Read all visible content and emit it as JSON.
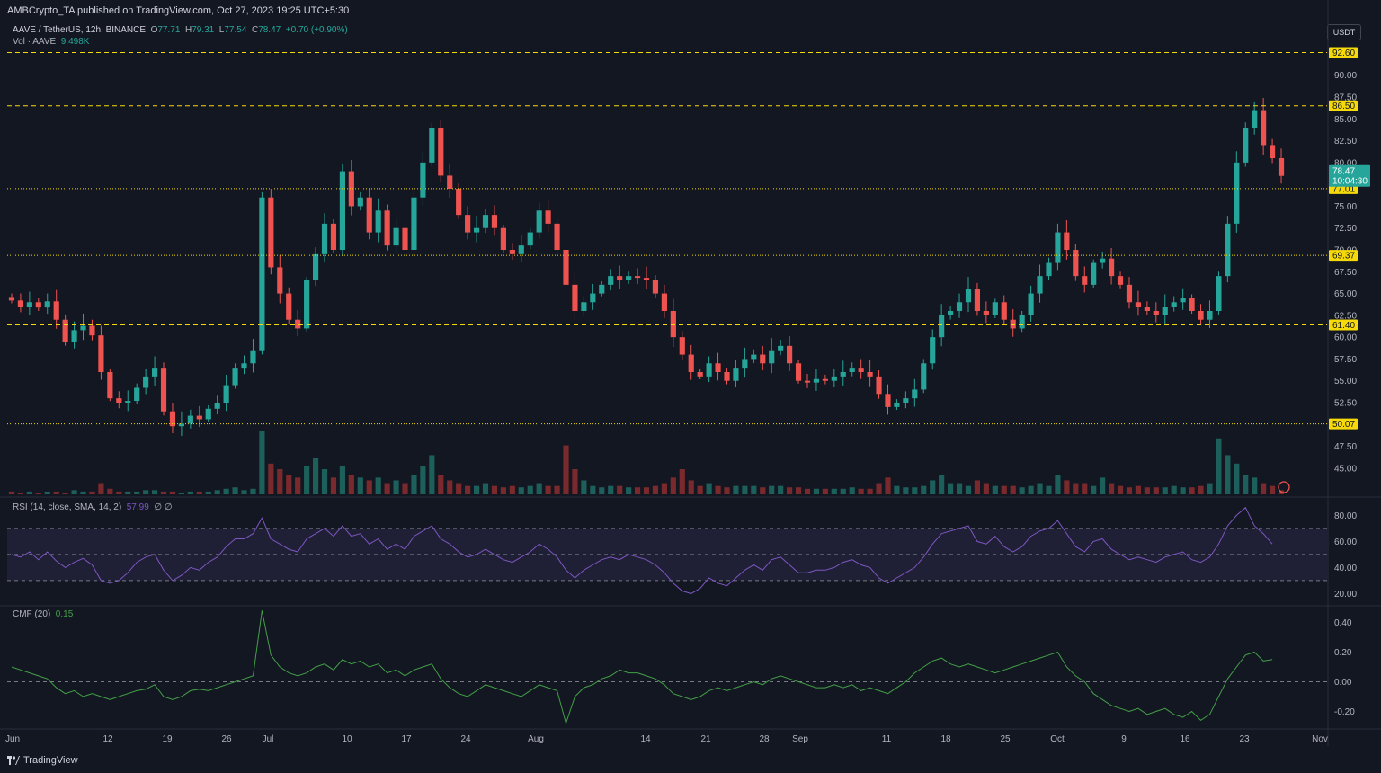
{
  "header": {
    "published_by": "AMBCrypto_TA published on TradingView.com, Oct 27, 2023 19:25 UTC+5:30"
  },
  "legend": {
    "symbol": "AAVE / TetherUS, 12h, BINANCE",
    "o_label": "O",
    "o_value": "77.71",
    "h_label": "H",
    "h_value": "79.31",
    "l_label": "L",
    "l_value": "77.54",
    "c_label": "C",
    "c_value": "78.47",
    "change": "+0.70 (+0.90%)",
    "vol_label": "Vol · AAVE",
    "vol_value": "9.498K"
  },
  "rsi_legend": {
    "label": "RSI (14, close, SMA, 14, 2)",
    "value": "57.99",
    "extra": "∅ ∅"
  },
  "cmf_legend": {
    "label": "CMF (20)",
    "value": "0.15"
  },
  "currency_badge": "USDT",
  "footer": {
    "brand": "TradingView"
  },
  "colors": {
    "up": "#26a69a",
    "down": "#ef5350",
    "level": "#f5d90a",
    "rsi": "#7e57c2",
    "cmf": "#43a047",
    "price_tag": "#26a69a"
  },
  "chart_data": {
    "type": "candlestick",
    "price_axis": {
      "ticks": [
        "90.00",
        "87.50",
        "85.00",
        "82.50",
        "80.00",
        "75.00",
        "72.50",
        "70.00",
        "67.50",
        "65.00",
        "62.50",
        "60.00",
        "57.50",
        "55.00",
        "52.50",
        "47.50",
        "45.00"
      ],
      "ylim": [
        42.0,
        94.5
      ]
    },
    "x_axis": {
      "ticks": [
        "Jun",
        "12",
        "19",
        "26",
        "Jul",
        "10",
        "17",
        "24",
        "Aug",
        "14",
        "21",
        "28",
        "Sep",
        "11",
        "18",
        "25",
        "Oct",
        "9",
        "16",
        "23",
        "Nov"
      ]
    },
    "levels": [
      {
        "value": 92.6,
        "label": "92.60",
        "style": "dashed"
      },
      {
        "value": 86.5,
        "label": "86.50",
        "style": "dashed"
      },
      {
        "value": 77.01,
        "label": "77.01",
        "style": "dotted"
      },
      {
        "value": 69.37,
        "label": "69.37",
        "style": "dotted"
      },
      {
        "value": 61.4,
        "label": "61.40",
        "style": "dashed"
      },
      {
        "value": 50.07,
        "label": "50.07",
        "style": "dotted"
      }
    ],
    "last_price": {
      "value": 78.47,
      "label": "78.47",
      "countdown": "10:04:30"
    },
    "close_path": [
      64.2,
      63.5,
      64.0,
      63.4,
      64.1,
      62.0,
      59.5,
      60.8,
      61.3,
      60.2,
      56.0,
      53.0,
      52.5,
      52.7,
      54.2,
      55.5,
      56.5,
      51.5,
      49.8,
      50.1,
      51.0,
      50.6,
      51.8,
      52.5,
      54.5,
      56.5,
      57.0,
      58.5,
      76.0,
      68.0,
      65.0,
      62.0,
      61.0,
      66.5,
      69.5,
      73.0,
      70.0,
      79.0,
      75.0,
      76.0,
      72.0,
      74.5,
      70.5,
      72.5,
      70.0,
      76.0,
      80.0,
      84.0,
      78.5,
      77.0,
      74.0,
      72.0,
      72.5,
      74.0,
      72.5,
      70.0,
      69.5,
      70.5,
      72.0,
      74.5,
      73.0,
      70.0,
      66.0,
      63.0,
      64.0,
      65.0,
      66.0,
      67.0,
      66.5,
      67.0,
      66.8,
      66.5,
      65.0,
      63.0,
      60.0,
      58.0,
      56.0,
      55.5,
      57.0,
      56.0,
      55.0,
      56.5,
      57.5,
      58.0,
      57.0,
      58.5,
      59.0,
      57.0,
      55.0,
      54.8,
      55.2,
      55.0,
      55.5,
      56.0,
      56.5,
      56.0,
      55.5,
      53.5,
      52.0,
      52.5,
      53.0,
      54.0,
      57.0,
      60.0,
      62.5,
      63.0,
      64.0,
      65.5,
      63.0,
      62.5,
      64.0,
      62.0,
      61.0,
      62.5,
      65.0,
      67.0,
      68.5,
      72.0,
      70.0,
      67.0,
      66.0,
      68.5,
      69.0,
      67.0,
      66.0,
      64.0,
      63.5,
      63.0,
      62.5,
      63.5,
      64.0,
      64.5,
      63.0,
      62.0,
      63.0,
      67.0,
      73.0,
      80.0,
      84.0,
      86.0,
      82.0,
      80.5,
      78.47
    ],
    "volume_profile": [
      2,
      1,
      2,
      1,
      2,
      2,
      1,
      3,
      2,
      2,
      8,
      4,
      2,
      2,
      2,
      3,
      3,
      2,
      2,
      1,
      2,
      2,
      2,
      3,
      4,
      5,
      3,
      4,
      45,
      22,
      18,
      14,
      12,
      20,
      26,
      18,
      12,
      20,
      14,
      12,
      10,
      12,
      8,
      10,
      8,
      14,
      20,
      28,
      14,
      10,
      8,
      6,
      6,
      8,
      6,
      5,
      6,
      5,
      6,
      8,
      6,
      6,
      35,
      18,
      10,
      6,
      5,
      6,
      6,
      5,
      5,
      5,
      6,
      8,
      12,
      18,
      10,
      6,
      8,
      6,
      5,
      6,
      6,
      6,
      5,
      6,
      6,
      5,
      5,
      4,
      4,
      4,
      4,
      4,
      5,
      4,
      4,
      8,
      12,
      6,
      5,
      5,
      6,
      10,
      14,
      8,
      8,
      6,
      10,
      8,
      6,
      6,
      6,
      5,
      6,
      8,
      6,
      14,
      10,
      8,
      8,
      6,
      12,
      8,
      6,
      5,
      6,
      5,
      5,
      5,
      6,
      5,
      5,
      6,
      8,
      40,
      28,
      22,
      14,
      12,
      8,
      6
    ],
    "rsi": {
      "values": [
        50,
        48,
        52,
        46,
        52,
        45,
        40,
        44,
        47,
        42,
        30,
        28,
        30,
        36,
        44,
        48,
        50,
        38,
        30,
        34,
        40,
        38,
        44,
        48,
        56,
        62,
        62,
        66,
        78,
        62,
        58,
        54,
        52,
        62,
        66,
        70,
        64,
        72,
        64,
        66,
        58,
        62,
        54,
        58,
        54,
        64,
        68,
        72,
        62,
        58,
        52,
        48,
        50,
        54,
        50,
        46,
        44,
        48,
        52,
        58,
        54,
        48,
        38,
        32,
        38,
        42,
        46,
        48,
        46,
        50,
        48,
        46,
        42,
        36,
        28,
        22,
        20,
        24,
        32,
        28,
        26,
        32,
        38,
        42,
        38,
        46,
        48,
        42,
        36,
        36,
        38,
        38,
        40,
        44,
        46,
        42,
        40,
        32,
        28,
        32,
        36,
        40,
        48,
        58,
        66,
        68,
        70,
        72,
        60,
        58,
        64,
        56,
        52,
        56,
        64,
        68,
        70,
        76,
        66,
        56,
        52,
        60,
        62,
        54,
        50,
        46,
        48,
        46,
        44,
        48,
        50,
        52,
        46,
        44,
        48,
        58,
        72,
        80,
        86,
        72,
        66,
        57.99
      ],
      "levels": [
        70,
        50,
        30
      ],
      "ticks": [
        "80.00",
        "60.00",
        "40.00",
        "20.00"
      ],
      "ylim": [
        12,
        92
      ]
    },
    "cmf": {
      "values": [
        0.1,
        0.08,
        0.06,
        0.04,
        0.02,
        -0.04,
        -0.08,
        -0.06,
        -0.1,
        -0.08,
        -0.1,
        -0.12,
        -0.1,
        -0.08,
        -0.06,
        -0.05,
        -0.02,
        -0.1,
        -0.12,
        -0.1,
        -0.06,
        -0.05,
        -0.06,
        -0.04,
        -0.02,
        0.0,
        0.02,
        0.04,
        0.48,
        0.18,
        0.1,
        0.06,
        0.04,
        0.06,
        0.1,
        0.12,
        0.08,
        0.15,
        0.12,
        0.14,
        0.1,
        0.12,
        0.06,
        0.08,
        0.04,
        0.08,
        0.1,
        0.12,
        0.02,
        -0.04,
        -0.08,
        -0.1,
        -0.06,
        -0.02,
        -0.04,
        -0.06,
        -0.08,
        -0.1,
        -0.06,
        -0.02,
        -0.04,
        -0.06,
        -0.28,
        -0.1,
        -0.04,
        -0.02,
        0.02,
        0.04,
        0.08,
        0.06,
        0.06,
        0.04,
        0.02,
        -0.02,
        -0.08,
        -0.1,
        -0.12,
        -0.1,
        -0.06,
        -0.04,
        -0.06,
        -0.04,
        -0.02,
        0.0,
        -0.02,
        0.02,
        0.04,
        0.02,
        0.0,
        -0.02,
        -0.04,
        -0.04,
        -0.02,
        -0.04,
        -0.02,
        -0.06,
        -0.04,
        -0.06,
        -0.08,
        -0.04,
        0.0,
        0.06,
        0.1,
        0.14,
        0.16,
        0.12,
        0.1,
        0.12,
        0.1,
        0.08,
        0.06,
        0.08,
        0.1,
        0.12,
        0.14,
        0.16,
        0.18,
        0.2,
        0.1,
        0.04,
        0.0,
        -0.08,
        -0.12,
        -0.16,
        -0.18,
        -0.2,
        -0.18,
        -0.22,
        -0.2,
        -0.18,
        -0.22,
        -0.24,
        -0.2,
        -0.26,
        -0.22,
        -0.1,
        0.02,
        0.1,
        0.18,
        0.2,
        0.14,
        0.15
      ],
      "zero_line": 0,
      "ticks": [
        "0.40",
        "0.20",
        "0.00",
        "-0.20"
      ],
      "ylim": [
        -0.3,
        0.5
      ]
    }
  }
}
